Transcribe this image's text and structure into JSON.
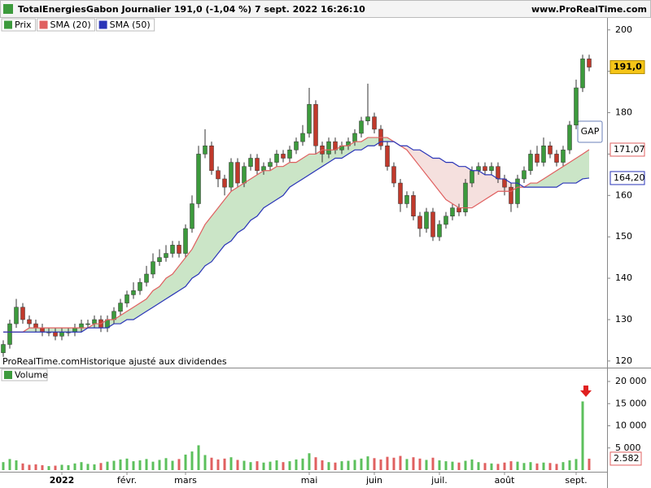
{
  "header": {
    "title": "TotalEnergiesGabon Journalier 191,0 (-1,04 %) 7 sept. 2022 16:26:10",
    "site": "www.ProRealTime.com"
  },
  "chart_data": [
    {
      "type": "candlestick",
      "colors": {
        "up": "#3c9a3c",
        "down": "#c0392b"
      },
      "series": [
        {
          "name": "Prix",
          "color": "#3c9a3c",
          "last_value_label": "191,0",
          "open": [
            122,
            124,
            129,
            133,
            130,
            129,
            128,
            127,
            127,
            126,
            127,
            127,
            128,
            129,
            129,
            130,
            128,
            130,
            132,
            134,
            136,
            137,
            139,
            141,
            144,
            145,
            146,
            148,
            146,
            152,
            158,
            170,
            172,
            166,
            164,
            162,
            168,
            163,
            167,
            169,
            166,
            167,
            168,
            170,
            169,
            171,
            173,
            175,
            182,
            172,
            170,
            173,
            171,
            172,
            173,
            175,
            178,
            179,
            176,
            172,
            167,
            163,
            158,
            160,
            155,
            152,
            156,
            150,
            153,
            155,
            157,
            156,
            163,
            166,
            167,
            166,
            167,
            164,
            162,
            158,
            164,
            166,
            170,
            168,
            172,
            170,
            168,
            171,
            177,
            186,
            193
          ],
          "high": [
            125,
            130,
            135,
            134,
            131,
            130,
            129,
            128,
            128,
            128,
            128,
            129,
            130,
            130,
            131,
            131,
            131,
            133,
            135,
            137,
            139,
            140,
            143,
            146,
            147,
            148,
            149,
            149,
            153,
            160,
            172,
            176,
            173,
            167,
            165,
            169,
            169,
            168,
            170,
            170,
            168,
            169,
            171,
            171,
            172,
            174,
            177,
            186,
            183,
            173,
            174,
            174,
            173,
            174,
            176,
            179,
            187,
            180,
            177,
            173,
            168,
            164,
            161,
            161,
            156,
            157,
            157,
            154,
            156,
            158,
            158,
            164,
            167,
            168,
            168,
            168,
            168,
            165,
            163,
            165,
            167,
            171,
            172,
            174,
            173,
            171,
            172,
            178,
            188,
            194,
            194
          ],
          "low": [
            121,
            123,
            128,
            129,
            128,
            127,
            126,
            126,
            125,
            125,
            126,
            126,
            127,
            128,
            128,
            127,
            127,
            129,
            131,
            133,
            135,
            136,
            138,
            140,
            143,
            144,
            145,
            145,
            145,
            151,
            157,
            169,
            165,
            162,
            160,
            161,
            162,
            162,
            166,
            165,
            165,
            166,
            167,
            168,
            168,
            170,
            172,
            174,
            170,
            168,
            169,
            170,
            170,
            171,
            172,
            174,
            177,
            175,
            171,
            166,
            162,
            156,
            157,
            154,
            150,
            151,
            149,
            149,
            152,
            154,
            155,
            155,
            162,
            165,
            165,
            165,
            163,
            160,
            156,
            157,
            163,
            165,
            167,
            167,
            169,
            167,
            167,
            170,
            176,
            185,
            190
          ],
          "close": [
            124,
            129,
            133,
            130,
            129,
            128,
            127,
            127,
            126,
            127,
            127,
            128,
            129,
            129,
            130,
            128,
            130,
            132,
            134,
            136,
            137,
            139,
            141,
            144,
            145,
            146,
            148,
            146,
            152,
            158,
            170,
            172,
            166,
            164,
            162,
            168,
            163,
            167,
            169,
            166,
            167,
            168,
            170,
            169,
            171,
            173,
            175,
            182,
            172,
            170,
            173,
            171,
            172,
            173,
            175,
            178,
            179,
            176,
            172,
            167,
            163,
            158,
            160,
            155,
            152,
            156,
            150,
            153,
            155,
            157,
            156,
            163,
            166,
            167,
            166,
            167,
            164,
            162,
            158,
            164,
            166,
            170,
            168,
            172,
            170,
            168,
            171,
            177,
            186,
            193,
            191
          ]
        },
        {
          "name": "SMA (20)",
          "color": "#e06060",
          "last_value_label": "171,07",
          "values": [
            127,
            127,
            127,
            127,
            128,
            128,
            128,
            128,
            128,
            128,
            128,
            128,
            128,
            128,
            129,
            129,
            130,
            130,
            131,
            132,
            133,
            134,
            135,
            137,
            138,
            140,
            141,
            143,
            145,
            147,
            150,
            153,
            155,
            157,
            159,
            161,
            162,
            163,
            164,
            165,
            166,
            166,
            167,
            167,
            168,
            168,
            169,
            170,
            170,
            171,
            171,
            171,
            172,
            172,
            173,
            173,
            174,
            174,
            174,
            174,
            173,
            172,
            171,
            169,
            167,
            165,
            163,
            161,
            159,
            158,
            157,
            157,
            157,
            158,
            159,
            160,
            161,
            161,
            161,
            162,
            162,
            163,
            163,
            164,
            165,
            166,
            167,
            168,
            169,
            170,
            171.07
          ]
        },
        {
          "name": "SMA (50)",
          "color": "#2a35b8",
          "last_value_label": "164,20",
          "values": [
            127,
            127,
            127,
            127,
            127,
            127,
            127,
            127,
            127,
            127,
            127,
            127,
            127,
            128,
            128,
            128,
            128,
            129,
            129,
            130,
            130,
            131,
            132,
            133,
            134,
            135,
            136,
            137,
            138,
            140,
            141,
            143,
            144,
            146,
            148,
            149,
            151,
            152,
            154,
            155,
            157,
            158,
            159,
            160,
            162,
            163,
            164,
            165,
            166,
            167,
            168,
            169,
            169,
            170,
            171,
            171,
            172,
            172,
            173,
            173,
            173,
            172,
            172,
            171,
            171,
            170,
            169,
            169,
            168,
            168,
            167,
            167,
            166,
            166,
            165,
            165,
            164,
            164,
            163,
            163,
            162,
            162,
            162,
            162,
            162,
            162,
            163,
            163,
            163,
            164,
            164.2
          ]
        }
      ],
      "ylim": [
        118.4,
        202.9
      ],
      "yticks": [
        120,
        130,
        140,
        150,
        160,
        170,
        180,
        190,
        200
      ],
      "note": "ProRealTime.comHistorique ajusté aux dividendes",
      "annotation": "GAP"
    },
    {
      "type": "bar",
      "title": "Volume",
      "last_value_label": "2.582",
      "categories": [
        null,
        null,
        null,
        null,
        null,
        null,
        null,
        null,
        null,
        "2022",
        null,
        null,
        null,
        null,
        null,
        null,
        null,
        null,
        null,
        "févr.",
        null,
        null,
        null,
        null,
        null,
        null,
        null,
        null,
        "mars",
        null,
        null,
        null,
        null,
        null,
        null,
        null,
        null,
        null,
        null,
        null,
        null,
        null,
        null,
        null,
        null,
        null,
        null,
        "mai",
        null,
        null,
        null,
        null,
        null,
        null,
        null,
        null,
        null,
        "juin",
        null,
        null,
        null,
        null,
        null,
        null,
        null,
        null,
        null,
        "juil.",
        null,
        null,
        null,
        null,
        null,
        null,
        null,
        null,
        null,
        "août",
        null,
        null,
        null,
        null,
        null,
        null,
        null,
        null,
        null,
        null,
        "sept.",
        null,
        null
      ],
      "values": [
        1800,
        2500,
        2200,
        1500,
        1200,
        1300,
        1100,
        900,
        1000,
        1200,
        1100,
        1500,
        1800,
        1400,
        1300,
        1600,
        1900,
        2100,
        2400,
        2600,
        2000,
        2200,
        2500,
        1900,
        2300,
        2700,
        2100,
        2500,
        3500,
        4200,
        5600,
        3400,
        2800,
        2400,
        2600,
        2900,
        2300,
        2100,
        1800,
        2000,
        1700,
        1900,
        2200,
        1800,
        2000,
        2400,
        2600,
        3800,
        2900,
        2200,
        1800,
        1700,
        2000,
        2100,
        2300,
        2600,
        3100,
        2700,
        2400,
        3000,
        2800,
        3200,
        2500,
        2900,
        2600,
        2300,
        2800,
        2200,
        2000,
        1900,
        1700,
        2100,
        2400,
        1800,
        1600,
        1500,
        1400,
        1700,
        2000,
        1900,
        1600,
        1800,
        1500,
        1700,
        1600,
        1400,
        1800,
        2200,
        2500,
        15500,
        2582
      ],
      "ylim": [
        0,
        20000
      ],
      "yticks": [
        {
          "value": 5000,
          "label": "5 000"
        },
        {
          "value": 10000,
          "label": "10 000"
        },
        {
          "value": 15000,
          "label": "15 000"
        },
        {
          "value": 20000,
          "label": "20 000"
        }
      ]
    }
  ]
}
